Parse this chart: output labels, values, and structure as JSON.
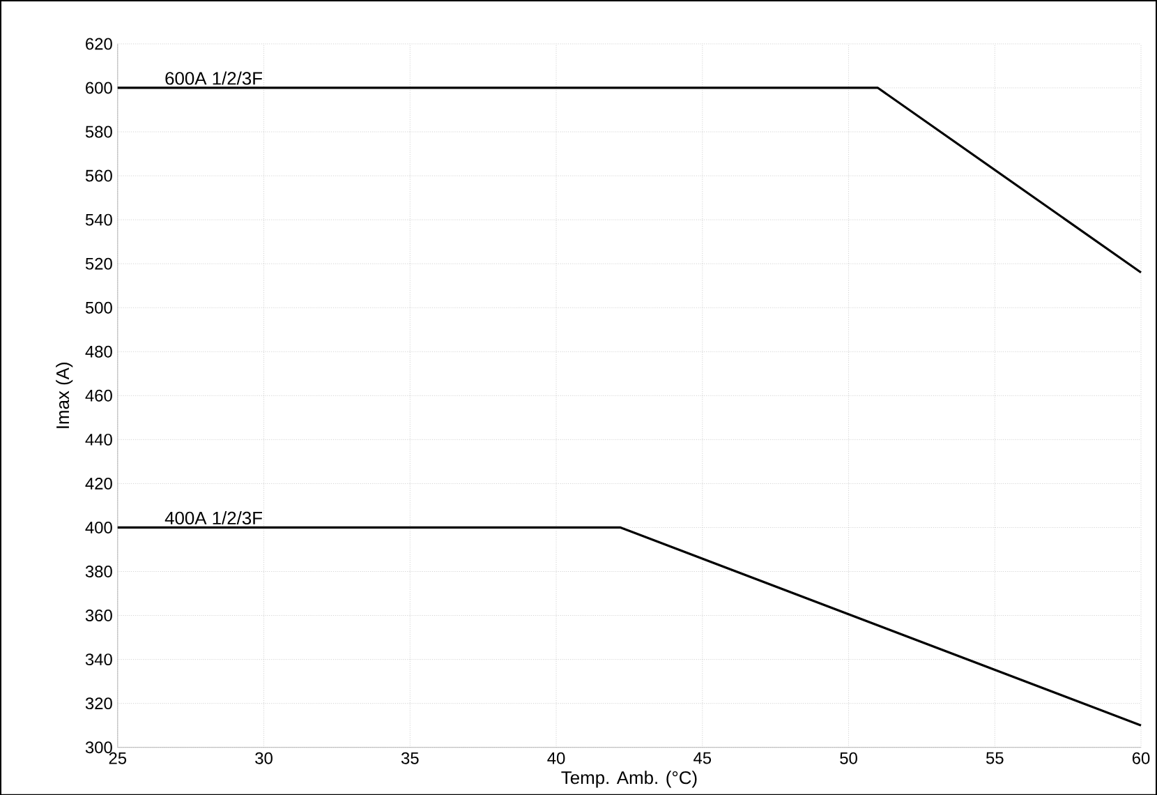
{
  "chart_data": {
    "type": "line",
    "xlabel": "Temp. Amb. (°C)",
    "ylabel": "Imax (A)",
    "xlim": [
      25,
      60
    ],
    "ylim": [
      300,
      620
    ],
    "xticks": [
      25,
      30,
      35,
      40,
      45,
      50,
      55,
      60
    ],
    "yticks": [
      300,
      320,
      340,
      360,
      380,
      400,
      420,
      440,
      460,
      480,
      500,
      520,
      540,
      560,
      580,
      600,
      620
    ],
    "grid": true,
    "legend": false,
    "marker": "none",
    "line_style": "solid",
    "series": [
      {
        "name": "600A 1/2/3F",
        "color": "#000000",
        "x": [
          25,
          51,
          60
        ],
        "values": [
          600,
          600,
          516
        ]
      },
      {
        "name": "400A 1/2/3F",
        "color": "#000000",
        "x": [
          25,
          42.2,
          60
        ],
        "values": [
          400,
          400,
          310
        ]
      }
    ]
  }
}
